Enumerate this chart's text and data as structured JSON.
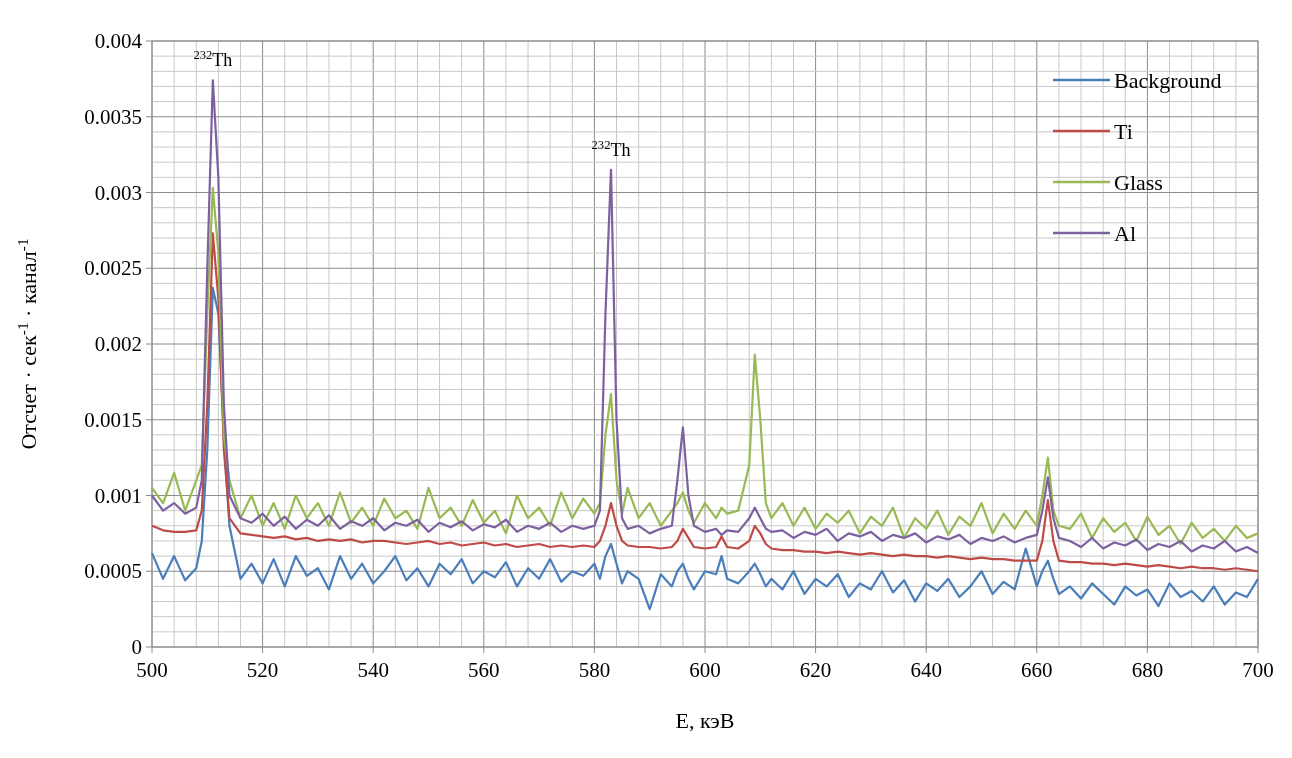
{
  "chart_data": {
    "type": "line",
    "xlabel": "E, кэВ",
    "ylabel": "Отсчет · сек$^{-1}$ · канал$^{-1}$",
    "xlim": [
      500,
      700
    ],
    "ylim": [
      0,
      0.004
    ],
    "xticks": [
      500,
      {
        "value": 504,
        "label": null
      },
      {
        "value": 508,
        "label": null
      },
      {
        "value": 512,
        "label": null
      },
      {
        "value": 516,
        "label": null
      },
      520,
      {
        "value": 524,
        "label": null
      },
      {
        "value": 528,
        "label": null
      },
      {
        "value": 532,
        "label": null
      },
      {
        "value": 536,
        "label": null
      },
      540,
      {
        "value": 544,
        "label": null
      },
      {
        "value": 548,
        "label": null
      },
      {
        "value": 552,
        "label": null
      },
      {
        "value": 556,
        "label": null
      },
      560,
      {
        "value": 564,
        "label": null
      },
      {
        "value": 568,
        "label": null
      },
      {
        "value": 572,
        "label": null
      },
      {
        "value": 576,
        "label": null
      },
      580,
      {
        "value": 584,
        "label": null
      },
      {
        "value": 588,
        "label": null
      },
      {
        "value": 592,
        "label": null
      },
      {
        "value": 596,
        "label": null
      },
      600,
      {
        "value": 604,
        "label": null
      },
      {
        "value": 608,
        "label": null
      },
      {
        "value": 612,
        "label": null
      },
      {
        "value": 616,
        "label": null
      },
      620,
      {
        "value": 624,
        "label": null
      },
      {
        "value": 628,
        "label": null
      },
      {
        "value": 632,
        "label": null
      },
      {
        "value": 636,
        "label": null
      },
      640,
      {
        "value": 644,
        "label": null
      },
      {
        "value": 648,
        "label": null
      },
      {
        "value": 652,
        "label": null
      },
      {
        "value": 656,
        "label": null
      },
      660,
      {
        "value": 664,
        "label": null
      },
      {
        "value": 668,
        "label": null
      },
      {
        "value": 672,
        "label": null
      },
      {
        "value": 676,
        "label": null
      },
      680,
      {
        "value": 684,
        "label": null
      },
      {
        "value": 688,
        "label": null
      },
      {
        "value": 692,
        "label": null
      },
      {
        "value": 696,
        "label": null
      },
      700
    ],
    "yticks": [
      0,
      {
        "value": 0.0001,
        "label": null
      },
      {
        "value": 0.0002,
        "label": null
      },
      {
        "value": 0.0003,
        "label": null
      },
      {
        "value": 0.0004,
        "label": null
      },
      0.0005,
      {
        "value": 0.0006,
        "label": null
      },
      {
        "value": 0.0007,
        "label": null
      },
      {
        "value": 0.0008,
        "label": null
      },
      {
        "value": 0.0009,
        "label": null
      },
      0.001,
      {
        "value": 0.0011,
        "label": null
      },
      {
        "value": 0.0012,
        "label": null
      },
      {
        "value": 0.0013,
        "label": null
      },
      {
        "value": 0.0014,
        "label": null
      },
      0.0015,
      {
        "value": 0.0016,
        "label": null
      },
      {
        "value": 0.0017,
        "label": null
      },
      {
        "value": 0.0018,
        "label": null
      },
      {
        "value": 0.0019,
        "label": null
      },
      0.002,
      {
        "value": 0.0021,
        "label": null
      },
      {
        "value": 0.0022,
        "label": null
      },
      {
        "value": 0.0023,
        "label": null
      },
      {
        "value": 0.0024,
        "label": null
      },
      0.0025,
      {
        "value": 0.0026,
        "label": null
      },
      {
        "value": 0.0027,
        "label": null
      },
      {
        "value": 0.0028,
        "label": null
      },
      {
        "value": 0.0029,
        "label": null
      },
      0.003,
      {
        "value": 0.0031,
        "label": null
      },
      {
        "value": 0.0032,
        "label": null
      },
      {
        "value": 0.0033,
        "label": null
      },
      {
        "value": 0.0034,
        "label": null
      },
      0.0035,
      {
        "value": 0.0036,
        "label": null
      },
      {
        "value": 0.0037,
        "label": null
      },
      {
        "value": 0.0038,
        "label": null
      },
      {
        "value": 0.0039,
        "label": null
      },
      0.004
    ],
    "grid": true,
    "legend": "top right",
    "marker": "none",
    "line_style": "solid",
    "annotations": [
      {
        "text": "$^{232}$Th",
        "x": 511,
        "y": 0.00374
      },
      {
        "text": "$^{232}$Th",
        "x": 583,
        "y": 0.00315
      }
    ],
    "x": [
      500,
      502,
      504,
      506,
      508,
      509,
      510,
      511,
      512,
      513,
      514,
      516,
      518,
      520,
      522,
      524,
      526,
      528,
      530,
      532,
      534,
      536,
      538,
      540,
      542,
      544,
      546,
      548,
      550,
      552,
      554,
      556,
      558,
      560,
      562,
      564,
      566,
      568,
      570,
      572,
      574,
      576,
      578,
      580,
      581,
      582,
      583,
      584,
      585,
      586,
      588,
      590,
      592,
      594,
      595,
      596,
      597,
      598,
      600,
      602,
      603,
      604,
      606,
      608,
      609,
      610,
      611,
      612,
      614,
      616,
      618,
      620,
      622,
      624,
      626,
      628,
      630,
      632,
      634,
      636,
      638,
      640,
      642,
      644,
      646,
      648,
      650,
      652,
      654,
      656,
      658,
      660,
      661,
      662,
      663,
      664,
      666,
      668,
      670,
      672,
      674,
      676,
      678,
      680,
      682,
      684,
      686,
      688,
      690,
      692,
      694,
      696,
      698,
      700
    ],
    "series": [
      {
        "name": "Background",
        "color": "#4a7ebb",
        "values": [
          0.00062,
          0.00045,
          0.0006,
          0.00044,
          0.00052,
          0.0007,
          0.0013,
          0.00237,
          0.0022,
          0.0014,
          0.0008,
          0.00045,
          0.00055,
          0.00042,
          0.00058,
          0.0004,
          0.0006,
          0.00047,
          0.00052,
          0.00038,
          0.0006,
          0.00045,
          0.00055,
          0.00042,
          0.0005,
          0.0006,
          0.00044,
          0.00052,
          0.0004,
          0.00055,
          0.00048,
          0.00058,
          0.00042,
          0.0005,
          0.00046,
          0.00056,
          0.0004,
          0.00052,
          0.00045,
          0.00058,
          0.00043,
          0.0005,
          0.00047,
          0.00055,
          0.00045,
          0.0006,
          0.00068,
          0.00055,
          0.00042,
          0.0005,
          0.00045,
          0.00025,
          0.00048,
          0.0004,
          0.0005,
          0.00055,
          0.00045,
          0.00038,
          0.0005,
          0.00048,
          0.0006,
          0.00045,
          0.00042,
          0.0005,
          0.00055,
          0.00048,
          0.0004,
          0.00045,
          0.00038,
          0.0005,
          0.00035,
          0.00045,
          0.0004,
          0.00048,
          0.00033,
          0.00042,
          0.00038,
          0.0005,
          0.00036,
          0.00044,
          0.0003,
          0.00042,
          0.00037,
          0.00045,
          0.00033,
          0.0004,
          0.0005,
          0.00035,
          0.00043,
          0.00038,
          0.00065,
          0.0004,
          0.0005,
          0.00057,
          0.00045,
          0.00035,
          0.0004,
          0.00032,
          0.00042,
          0.00035,
          0.00028,
          0.0004,
          0.00034,
          0.00038,
          0.00027,
          0.00042,
          0.00033,
          0.00037,
          0.0003,
          0.0004,
          0.00028,
          0.00036,
          0.00033,
          0.00045
        ]
      },
      {
        "name": "Ti",
        "color": "#be4b48",
        "values": [
          0.0008,
          0.00077,
          0.00076,
          0.00076,
          0.00077,
          0.0009,
          0.0016,
          0.00273,
          0.0023,
          0.0013,
          0.00085,
          0.00075,
          0.00074,
          0.00073,
          0.00072,
          0.00073,
          0.00071,
          0.00072,
          0.0007,
          0.00071,
          0.0007,
          0.00071,
          0.00069,
          0.0007,
          0.0007,
          0.00069,
          0.00068,
          0.00069,
          0.0007,
          0.00068,
          0.00069,
          0.00067,
          0.00068,
          0.00069,
          0.00067,
          0.00068,
          0.00066,
          0.00067,
          0.00068,
          0.00066,
          0.00067,
          0.00066,
          0.00067,
          0.00066,
          0.0007,
          0.0008,
          0.00095,
          0.0008,
          0.0007,
          0.00067,
          0.00066,
          0.00066,
          0.00065,
          0.00066,
          0.0007,
          0.00078,
          0.00072,
          0.00066,
          0.00065,
          0.00066,
          0.00073,
          0.00066,
          0.00065,
          0.0007,
          0.0008,
          0.00075,
          0.00068,
          0.00065,
          0.00064,
          0.00064,
          0.00063,
          0.00063,
          0.00062,
          0.00063,
          0.00062,
          0.00061,
          0.00062,
          0.00061,
          0.0006,
          0.00061,
          0.0006,
          0.0006,
          0.00059,
          0.0006,
          0.00059,
          0.00058,
          0.00059,
          0.00058,
          0.00058,
          0.00057,
          0.00057,
          0.00057,
          0.0007,
          0.00097,
          0.0007,
          0.00057,
          0.00056,
          0.00056,
          0.00055,
          0.00055,
          0.00054,
          0.00055,
          0.00054,
          0.00053,
          0.00054,
          0.00053,
          0.00052,
          0.00053,
          0.00052,
          0.00052,
          0.00051,
          0.00052,
          0.00051,
          0.0005
        ]
      },
      {
        "name": "Glass",
        "color": "#98b954",
        "values": [
          0.00105,
          0.00095,
          0.00115,
          0.0009,
          0.0011,
          0.0012,
          0.0022,
          0.00303,
          0.0026,
          0.0014,
          0.0011,
          0.00085,
          0.001,
          0.0008,
          0.00095,
          0.00078,
          0.001,
          0.00085,
          0.00095,
          0.0008,
          0.00102,
          0.00082,
          0.00092,
          0.0008,
          0.00098,
          0.00085,
          0.0009,
          0.00078,
          0.00105,
          0.00085,
          0.00092,
          0.0008,
          0.00097,
          0.00082,
          0.0009,
          0.00075,
          0.001,
          0.00085,
          0.00092,
          0.0008,
          0.00102,
          0.00085,
          0.00098,
          0.00088,
          0.00095,
          0.0014,
          0.00167,
          0.0011,
          0.00088,
          0.00105,
          0.00085,
          0.00095,
          0.0008,
          0.0009,
          0.00095,
          0.00102,
          0.0009,
          0.00082,
          0.00095,
          0.00085,
          0.00092,
          0.00088,
          0.0009,
          0.0012,
          0.00193,
          0.0015,
          0.00095,
          0.00085,
          0.00095,
          0.0008,
          0.00092,
          0.00078,
          0.00088,
          0.00082,
          0.0009,
          0.00075,
          0.00086,
          0.0008,
          0.00092,
          0.00072,
          0.00085,
          0.00078,
          0.0009,
          0.00074,
          0.00086,
          0.0008,
          0.00095,
          0.00075,
          0.00088,
          0.00078,
          0.0009,
          0.0008,
          0.001,
          0.00125,
          0.0009,
          0.0008,
          0.00078,
          0.00088,
          0.00072,
          0.00085,
          0.00076,
          0.00082,
          0.0007,
          0.00086,
          0.00074,
          0.0008,
          0.00068,
          0.00082,
          0.00072,
          0.00078,
          0.0007,
          0.0008,
          0.00072,
          0.00075
        ]
      },
      {
        "name": "Al",
        "color": "#7d60a0",
        "values": [
          0.001,
          0.0009,
          0.00095,
          0.00088,
          0.00092,
          0.0011,
          0.0025,
          0.00374,
          0.0031,
          0.0016,
          0.001,
          0.00085,
          0.00082,
          0.00088,
          0.0008,
          0.00086,
          0.00078,
          0.00084,
          0.0008,
          0.00087,
          0.00078,
          0.00083,
          0.0008,
          0.00085,
          0.00077,
          0.00082,
          0.0008,
          0.00084,
          0.00076,
          0.00082,
          0.00079,
          0.00083,
          0.00077,
          0.00081,
          0.00079,
          0.00084,
          0.00076,
          0.0008,
          0.00078,
          0.00082,
          0.00076,
          0.0008,
          0.00078,
          0.0008,
          0.0009,
          0.0022,
          0.00315,
          0.0015,
          0.00085,
          0.00078,
          0.0008,
          0.00075,
          0.00078,
          0.0008,
          0.0011,
          0.00145,
          0.001,
          0.0008,
          0.00076,
          0.00078,
          0.00074,
          0.00077,
          0.00076,
          0.00085,
          0.00092,
          0.00085,
          0.00078,
          0.00076,
          0.00077,
          0.00072,
          0.00076,
          0.00074,
          0.00078,
          0.0007,
          0.00075,
          0.00073,
          0.00076,
          0.0007,
          0.00074,
          0.00072,
          0.00075,
          0.00069,
          0.00073,
          0.00071,
          0.00074,
          0.00068,
          0.00072,
          0.0007,
          0.00073,
          0.00069,
          0.00072,
          0.00074,
          0.0009,
          0.00112,
          0.00085,
          0.00072,
          0.0007,
          0.00066,
          0.00072,
          0.00065,
          0.00069,
          0.00067,
          0.00071,
          0.00064,
          0.00068,
          0.00066,
          0.0007,
          0.00063,
          0.00067,
          0.00065,
          0.0007,
          0.00063,
          0.00066,
          0.00062
        ]
      }
    ]
  }
}
